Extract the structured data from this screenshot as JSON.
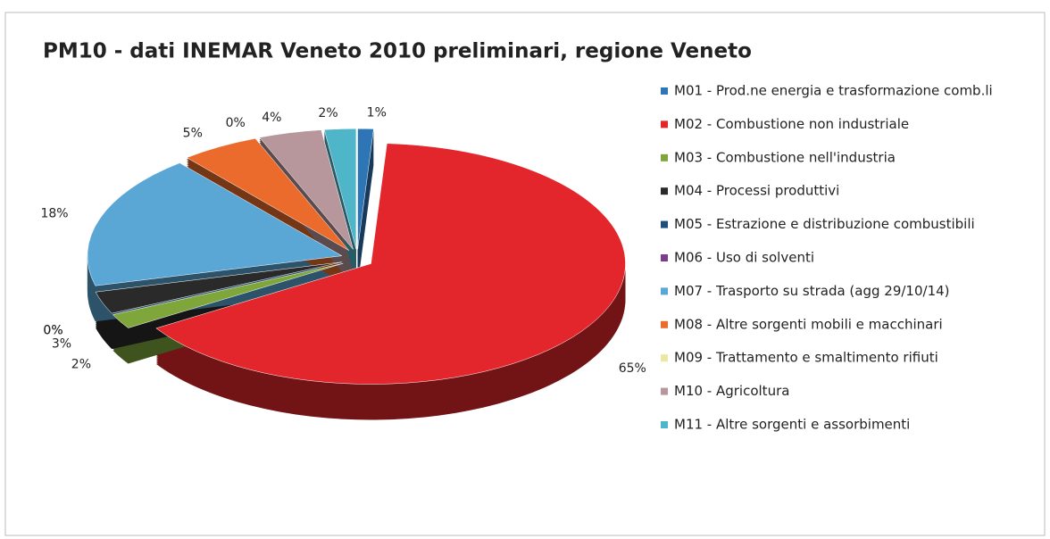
{
  "chart_data": {
    "type": "pie",
    "title": "PM10 - dati INEMAR Veneto 2010 preliminari, regione Veneto",
    "categories": [
      "M01 - Prod.ne energia e trasformazione comb.li",
      "M02 - Combustione non industriale",
      "M03 - Combustione nell'industria",
      "M04 - Processi produttivi",
      "M05 - Estrazione e distribuzione combustibili",
      "M06 - Uso di solventi",
      "M07 - Trasporto su strada (agg 29/10/14)",
      "M08 - Altre sorgenti mobili e macchinari",
      "M09 - Trattamento e smaltimento rifiuti",
      "M10 - Agricoltura",
      "M11 - Altre sorgenti e assorbimenti"
    ],
    "values": [
      1,
      65,
      2,
      3,
      0,
      0,
      18,
      5,
      0,
      4,
      2
    ],
    "value_labels": [
      "1%",
      "65%",
      "2%",
      "3%",
      "0%",
      "0%",
      "18%",
      "5%",
      "0%",
      "4%",
      "2%"
    ],
    "colors": [
      "#2e75b6",
      "#e3262b",
      "#7ea63b",
      "#2a2a2a",
      "#1f4e79",
      "#7b3c8c",
      "#5aa6d4",
      "#ea6b2c",
      "#e8e8a2",
      "#b7969c",
      "#4fb6c9"
    ],
    "legend": "right"
  }
}
